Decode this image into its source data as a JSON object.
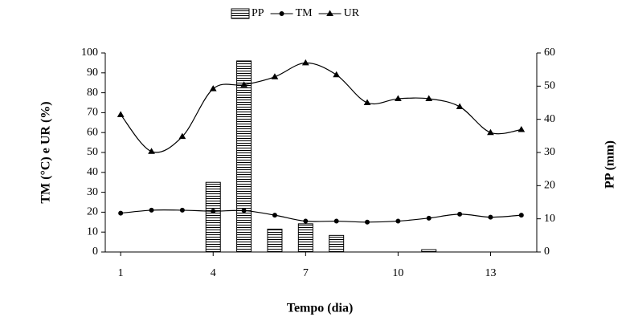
{
  "chart_data": {
    "type": "combo",
    "x_label": "Tempo (dia)",
    "y_label": "TM (°C) e UR (%)",
    "y2_label": "PP (mm)",
    "x": [
      1,
      2,
      3,
      4,
      5,
      6,
      7,
      8,
      9,
      10,
      11,
      12,
      13,
      14
    ],
    "xlim": [
      0.5,
      14.5
    ],
    "xticks": [
      1,
      4,
      7,
      10,
      13
    ],
    "ylim": [
      0,
      100
    ],
    "yticks": [
      0,
      10,
      20,
      30,
      40,
      50,
      60,
      70,
      80,
      90,
      100
    ],
    "y2lim": [
      0,
      60
    ],
    "y2ticks": [
      0,
      10,
      20,
      30,
      40,
      50,
      60
    ],
    "legend": "top",
    "series": [
      {
        "name": "PP",
        "type": "bar",
        "axis": "y2",
        "color": "#000000",
        "values": [
          0,
          0,
          0,
          21,
          57.6,
          6.9,
          8.5,
          5,
          0,
          0,
          0.7,
          0,
          0,
          0
        ]
      },
      {
        "name": "TM",
        "type": "line",
        "marker": "circle",
        "color": "#000000",
        "values": [
          19.5,
          21,
          21,
          20.5,
          20.8,
          18.5,
          15.5,
          15.5,
          15,
          15.5,
          17,
          19,
          17.5,
          18.5
        ]
      },
      {
        "name": "UR",
        "type": "line",
        "marker": "triangle",
        "color": "#000000",
        "values": [
          69,
          50.5,
          58,
          82,
          84,
          88,
          95,
          89,
          75,
          77,
          77,
          73,
          60,
          61.5
        ]
      }
    ]
  }
}
